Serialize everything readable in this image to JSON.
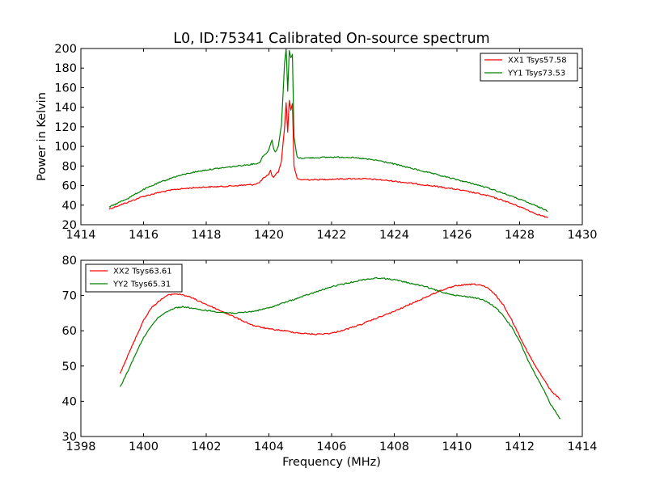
{
  "chart_data": [
    {
      "type": "line",
      "title": "L0, ID:75341 Calibrated On-source spectrum",
      "xlabel": "",
      "ylabel": "Power in Kelvin",
      "xlim": [
        1414,
        1430
      ],
      "ylim": [
        20,
        200
      ],
      "xticks": [
        "1414",
        "1416",
        "1418",
        "1420",
        "1422",
        "1424",
        "1426",
        "1428",
        "1430"
      ],
      "yticks": [
        "20",
        "40",
        "60",
        "80",
        "100",
        "120",
        "140",
        "160",
        "180",
        "200"
      ],
      "grid": false,
      "legend_position": "top-right",
      "series": [
        {
          "name": "XX1 Tsys57.58",
          "color": "#ff0000",
          "x": [
            1414.9,
            1415.5,
            1416.0,
            1416.5,
            1417.0,
            1417.5,
            1418.0,
            1418.5,
            1419.0,
            1419.5,
            1419.7,
            1419.8,
            1419.9,
            1420.0,
            1420.05,
            1420.1,
            1420.15,
            1420.2,
            1420.3,
            1420.4,
            1420.5,
            1420.55,
            1420.6,
            1420.65,
            1420.7,
            1420.75,
            1420.8,
            1420.9,
            1421.0,
            1421.5,
            1422.0,
            1422.5,
            1423.0,
            1423.5,
            1424.0,
            1424.5,
            1425.0,
            1425.5,
            1426.0,
            1426.5,
            1427.0,
            1427.5,
            1428.0,
            1428.5,
            1428.9
          ],
          "y": [
            36,
            43,
            49,
            53,
            56,
            57.5,
            58.5,
            59,
            60,
            61,
            63,
            67,
            69,
            71,
            76,
            70,
            68,
            71,
            74,
            85,
            120,
            145,
            115,
            147,
            137,
            144,
            80,
            67,
            66,
            66,
            66.5,
            67,
            67,
            66,
            64.5,
            62.5,
            60.5,
            58.5,
            56,
            53,
            49.5,
            44.5,
            38.5,
            31.5,
            27
          ]
        },
        {
          "name": "YY1 Tsys73.53",
          "color": "#008000",
          "x": [
            1414.9,
            1415.5,
            1416.0,
            1416.5,
            1417.0,
            1417.5,
            1418.0,
            1418.5,
            1419.0,
            1419.5,
            1419.7,
            1419.8,
            1419.9,
            1420.0,
            1420.1,
            1420.15,
            1420.2,
            1420.3,
            1420.4,
            1420.5,
            1420.55,
            1420.6,
            1420.65,
            1420.7,
            1420.75,
            1420.8,
            1420.9,
            1421.0,
            1421.5,
            1422.0,
            1422.5,
            1423.0,
            1423.5,
            1424.0,
            1424.5,
            1425.0,
            1425.5,
            1426.0,
            1426.5,
            1427.0,
            1427.5,
            1428.0,
            1428.5,
            1428.9
          ],
          "y": [
            38,
            47,
            56,
            63,
            69,
            73,
            76,
            78,
            80,
            82,
            83,
            90,
            92,
            97,
            107,
            98,
            94,
            100,
            122,
            185,
            200,
            156,
            198,
            190,
            194,
            110,
            89,
            88,
            88.5,
            89,
            89,
            87.5,
            85.5,
            82,
            78,
            74,
            70,
            66,
            62,
            57.5,
            52,
            46,
            39.5,
            34
          ]
        }
      ]
    },
    {
      "type": "line",
      "title": "",
      "xlabel": "Frequency (MHz)",
      "ylabel": "",
      "xlim": [
        1398,
        1414
      ],
      "ylim": [
        30,
        80
      ],
      "xticks": [
        "1398",
        "1400",
        "1402",
        "1404",
        "1406",
        "1408",
        "1410",
        "1412",
        "1414"
      ],
      "yticks": [
        "30",
        "40",
        "50",
        "60",
        "70",
        "80"
      ],
      "grid": false,
      "legend_position": "top-left",
      "series": [
        {
          "name": "XX2 Tsys63.61",
          "color": "#ff0000",
          "x": [
            1399.25,
            1399.5,
            1399.75,
            1400.0,
            1400.25,
            1400.5,
            1400.75,
            1401.0,
            1401.25,
            1401.5,
            1401.75,
            1402.0,
            1402.5,
            1403.0,
            1403.5,
            1404.0,
            1404.5,
            1405.0,
            1405.5,
            1406.0,
            1406.5,
            1407.0,
            1407.5,
            1408.0,
            1408.5,
            1409.0,
            1409.5,
            1410.0,
            1410.5,
            1410.75,
            1411.0,
            1411.25,
            1411.5,
            1411.75,
            1412.0,
            1412.25,
            1412.5,
            1412.75,
            1413.0,
            1413.3
          ],
          "y": [
            48,
            53,
            58,
            63,
            66.5,
            68.5,
            70,
            70.5,
            70.2,
            69.5,
            68.5,
            67.5,
            65.5,
            63.5,
            61.5,
            60.5,
            60,
            59.3,
            59,
            59.3,
            60.5,
            62,
            63.8,
            65.5,
            67.5,
            69.5,
            71.5,
            72.8,
            73.2,
            73,
            72,
            70,
            67,
            63,
            58.5,
            54,
            50,
            46.5,
            43,
            40.5
          ]
        },
        {
          "name": "YY2 Tsys65.31",
          "color": "#008000",
          "x": [
            1399.25,
            1399.5,
            1399.75,
            1400.0,
            1400.25,
            1400.5,
            1400.75,
            1401.0,
            1401.25,
            1401.5,
            1401.75,
            1402.0,
            1402.5,
            1403.0,
            1403.5,
            1404.0,
            1404.5,
            1405.0,
            1405.5,
            1406.0,
            1406.5,
            1407.0,
            1407.5,
            1408.0,
            1408.5,
            1409.0,
            1409.5,
            1410.0,
            1410.5,
            1410.75,
            1411.0,
            1411.25,
            1411.5,
            1411.75,
            1412.0,
            1412.25,
            1412.5,
            1412.75,
            1413.0,
            1413.3
          ],
          "y": [
            44,
            48.5,
            53.5,
            58,
            61.5,
            64,
            65.5,
            66.5,
            66.8,
            66.5,
            66,
            65.8,
            65.2,
            65,
            65.5,
            66.5,
            68,
            69.5,
            71,
            72.5,
            73.5,
            74.5,
            75,
            74.5,
            73.5,
            72.5,
            71,
            70,
            69.5,
            69,
            68,
            66.5,
            64,
            61,
            57,
            52,
            47.5,
            43.5,
            39,
            35
          ]
        }
      ]
    }
  ]
}
